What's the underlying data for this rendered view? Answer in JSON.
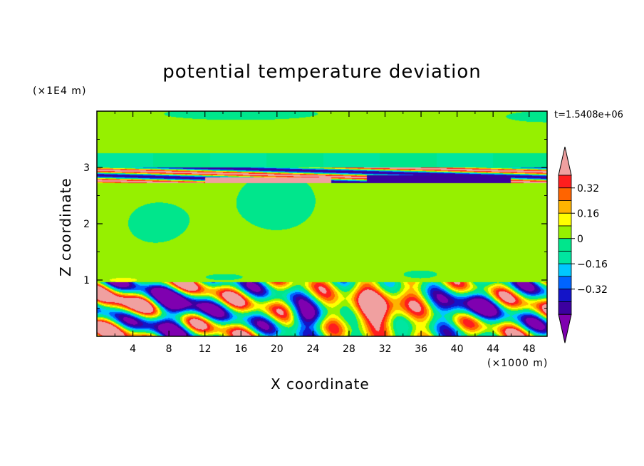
{
  "chart_data": {
    "type": "heatmap",
    "title": "potential temperature deviation",
    "xlabel": "X coordinate",
    "ylabel": "Z coordinate",
    "x_scale_label": "(×1000 m)",
    "y_scale_label": "(×1E4 m)",
    "time_label": "t=1.5408e+06",
    "xlim": [
      0,
      50
    ],
    "ylim": [
      0,
      4
    ],
    "x_ticks": [
      "4",
      "8",
      "12",
      "16",
      "20",
      "24",
      "28",
      "32",
      "36",
      "40",
      "44",
      "48"
    ],
    "y_ticks": [
      "1",
      "2",
      "3"
    ],
    "colorbar": {
      "levels": [
        -0.48,
        -0.4,
        -0.32,
        -0.24,
        -0.16,
        -0.08,
        0,
        0.08,
        0.16,
        0.24,
        0.32,
        0.4
      ],
      "colors": [
        "#7f00b0",
        "#3c00a0",
        "#1414c8",
        "#0064ff",
        "#00c8ff",
        "#00e6a0",
        "#00e68c",
        "#96f000",
        "#ffff00",
        "#ffb400",
        "#ff6400",
        "#ff1e1e",
        "#f0a0a0"
      ],
      "tick_labels": [
        "0.32",
        "0.16",
        "0",
        "−0.16",
        "−0.32"
      ],
      "extend": "both"
    }
  }
}
